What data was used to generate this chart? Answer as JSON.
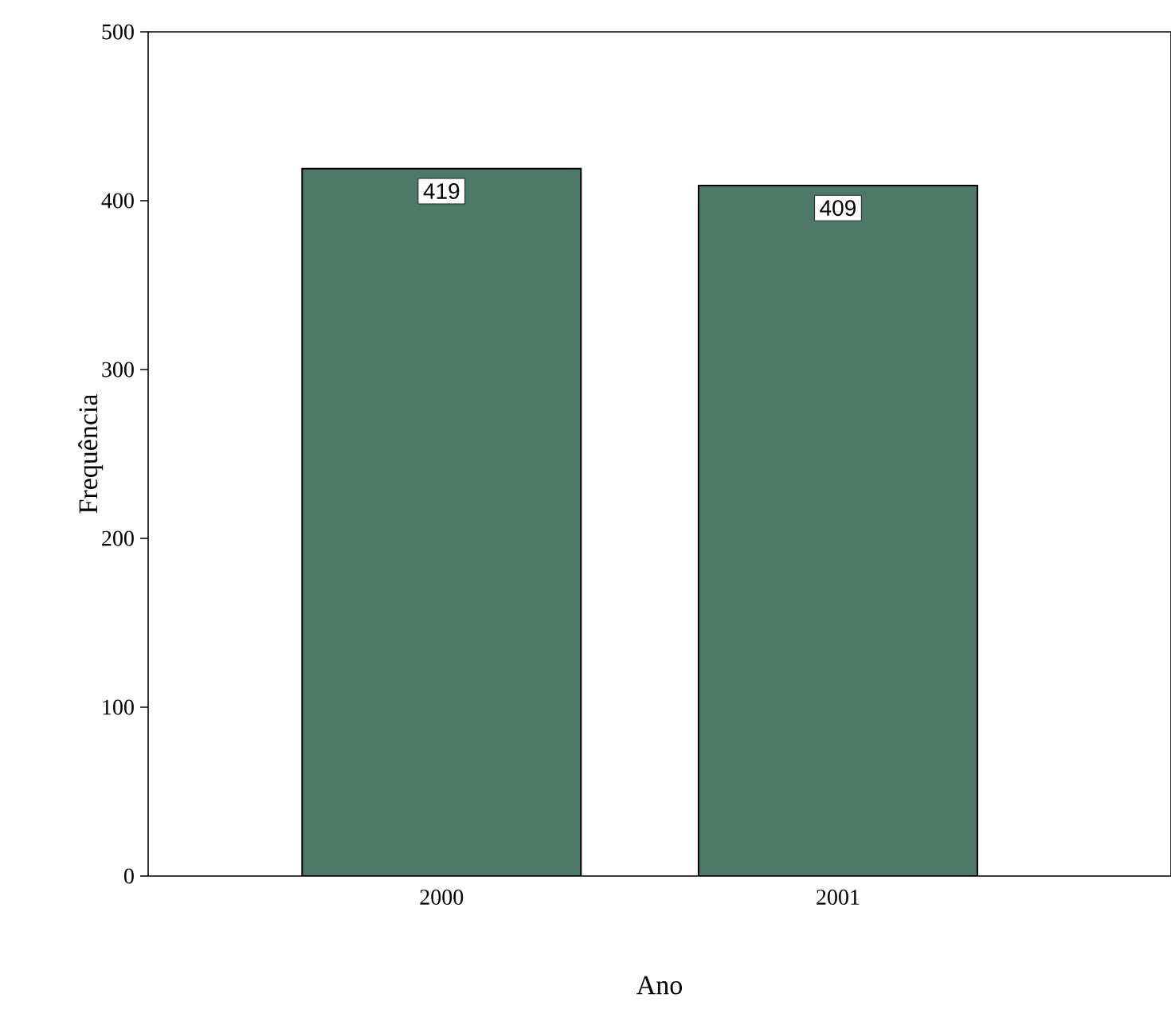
{
  "chart_data": {
    "type": "bar",
    "categories": [
      "2000",
      "2001"
    ],
    "values": [
      419,
      409
    ],
    "color": "#4e7868",
    "xlabel": "Ano",
    "ylabel": "Frequência",
    "ylim": [
      0,
      500
    ],
    "yticks": [
      0,
      100,
      200,
      300,
      400,
      500
    ],
    "data_labels": true,
    "grid": false
  }
}
